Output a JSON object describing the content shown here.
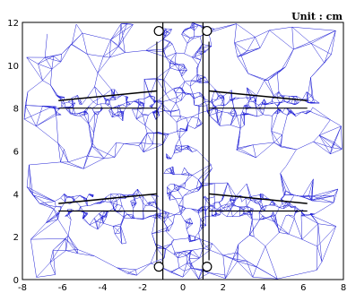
{
  "unit_label": "Unit : cm",
  "axes": {
    "x": {
      "min": -8,
      "max": 8,
      "ticks": [
        -8,
        -6,
        -4,
        -2,
        0,
        2,
        4,
        6,
        8
      ]
    },
    "y": {
      "min": 0,
      "max": 12,
      "ticks": [
        0,
        2,
        4,
        6,
        8,
        10,
        12
      ]
    }
  },
  "colors": {
    "mesh": "#1f1fd6",
    "boundary": "#000000",
    "background": "#ffffff"
  }
}
